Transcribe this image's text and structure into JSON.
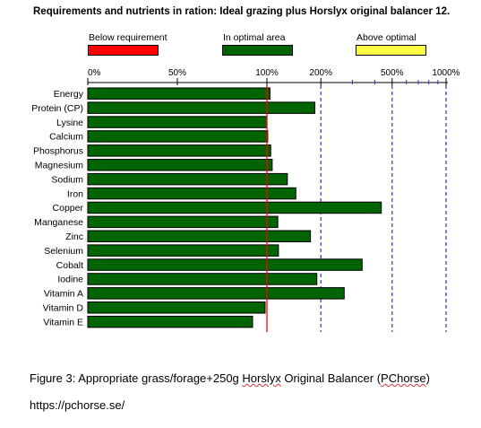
{
  "chart_data": {
    "type": "bar",
    "orientation": "horizontal",
    "title": "Requirements and nutrients in ration: Ideal grazing plus Horslyx original balancer 12.",
    "legend": [
      {
        "label": "Below requirement",
        "color": "#ff0000"
      },
      {
        "label": "In optimal area",
        "color": "#006400"
      },
      {
        "label": "Above optimal",
        "color": "#ffff44"
      }
    ],
    "legend_position": "top",
    "x_ticks": [
      "0%",
      "50%",
      "100%",
      "200%",
      "500%",
      "1000%"
    ],
    "x_scale": "piecewise-log",
    "xlim": [
      0,
      1000
    ],
    "requirement_line": 100,
    "categories": [
      "Energy",
      "Protein (CP)",
      "Lysine",
      "Calcium",
      "Phosphorus",
      "Magnesium",
      "Sodium",
      "Iron",
      "Copper",
      "Manganese",
      "Zinc",
      "Selenium",
      "Cobalt",
      "Iodine",
      "Vitamin A",
      "Vitamin D",
      "Vitamin E"
    ],
    "values": [
      104,
      185,
      100,
      101,
      105,
      107,
      130,
      145,
      435,
      115,
      175,
      116,
      340,
      190,
      270,
      99,
      92
    ],
    "bar_color": "#006400",
    "grid": "vertical dashed"
  },
  "caption": {
    "prefix": "Figure 3: Appropriate grass/forage+250g ",
    "brand": "Horslyx",
    "middle": " Original Balancer (",
    "site": "PChorse",
    "suffix": ")"
  },
  "source_url": "https://pchorse.se/"
}
